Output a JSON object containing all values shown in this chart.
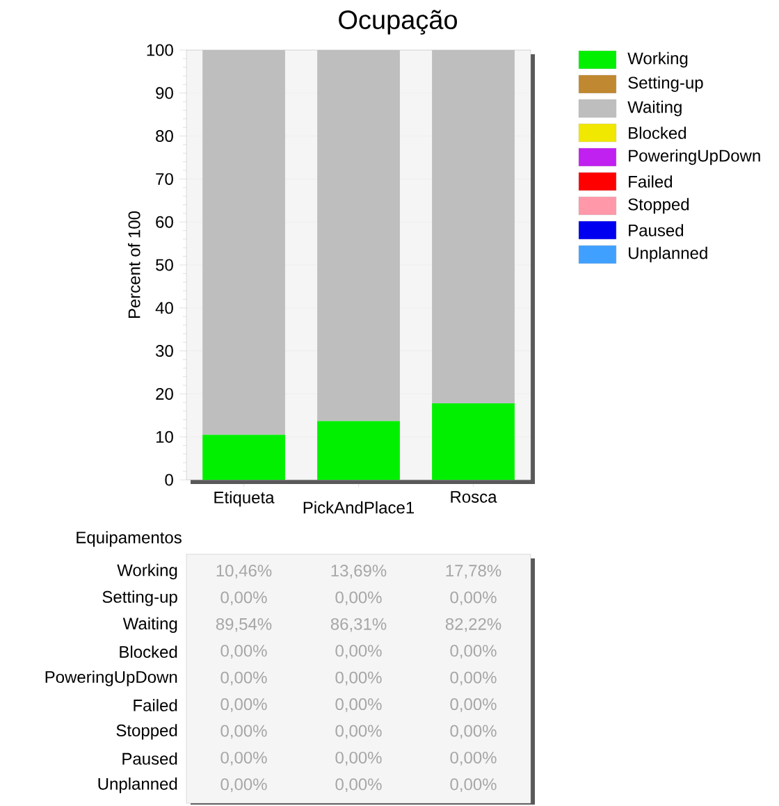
{
  "chart_data": {
    "type": "bar",
    "title": "Ocupação",
    "xlabel": "Equipamentos",
    "ylabel": "Percent of 100",
    "categories": [
      "Etiqueta",
      "PickAndPlace1",
      "Rosca"
    ],
    "stacked": true,
    "ylim": [
      0,
      100
    ],
    "yticks": [
      0,
      10,
      20,
      30,
      40,
      50,
      60,
      70,
      80,
      90,
      100
    ],
    "grid": "y",
    "legend": "top right",
    "series": [
      {
        "name": "Working",
        "color": "#00f000",
        "values": [
          10.46,
          13.69,
          17.78
        ],
        "value_labels": [
          "10,46%",
          "13,69%",
          "17,78%"
        ]
      },
      {
        "name": "Setting-up",
        "color": "#c08830",
        "values": [
          0,
          0,
          0
        ],
        "value_labels": [
          "0,00%",
          "0,00%",
          "0,00%"
        ]
      },
      {
        "name": "Waiting",
        "color": "#bebebe",
        "values": [
          89.54,
          86.31,
          82.22
        ],
        "value_labels": [
          "89,54%",
          "86,31%",
          "82,22%"
        ]
      },
      {
        "name": "Blocked",
        "color": "#f0e800",
        "values": [
          0,
          0,
          0
        ],
        "value_labels": [
          "0,00%",
          "0,00%",
          "0,00%"
        ]
      },
      {
        "name": "PoweringUpDown",
        "color": "#c020f0",
        "values": [
          0,
          0,
          0
        ],
        "value_labels": [
          "0,00%",
          "0,00%",
          "0,00%"
        ]
      },
      {
        "name": "Failed",
        "color": "#ff0000",
        "values": [
          0,
          0,
          0
        ],
        "value_labels": [
          "0,00%",
          "0,00%",
          "0,00%"
        ]
      },
      {
        "name": "Stopped",
        "color": "#ff98a8",
        "values": [
          0,
          0,
          0
        ],
        "value_labels": [
          "0,00%",
          "0,00%",
          "0,00%"
        ]
      },
      {
        "name": "Paused",
        "color": "#0000f0",
        "values": [
          0,
          0,
          0
        ],
        "value_labels": [
          "0,00%",
          "0,00%",
          "0,00%"
        ]
      },
      {
        "name": "Unplanned",
        "color": "#40a0ff",
        "values": [
          0,
          0,
          0
        ],
        "value_labels": [
          "0,00%",
          "0,00%",
          "0,00%"
        ]
      }
    ]
  }
}
